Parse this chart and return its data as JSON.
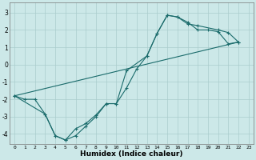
{
  "bg_color": "#cce8e8",
  "grid_color": "#aacccc",
  "line_color": "#1a6b6b",
  "xlabel": "Humidex (Indice chaleur)",
  "xlim": [
    -0.5,
    23.5
  ],
  "ylim": [
    -4.6,
    3.6
  ],
  "yticks": [
    -4,
    -3,
    -2,
    -1,
    0,
    1,
    2,
    3
  ],
  "xticks": [
    0,
    1,
    2,
    3,
    4,
    5,
    6,
    7,
    8,
    9,
    10,
    11,
    12,
    13,
    14,
    15,
    16,
    17,
    18,
    19,
    20,
    21,
    22,
    23
  ],
  "line1_x": [
    0,
    1,
    2,
    3,
    4,
    5,
    6,
    7,
    8,
    9,
    10,
    11,
    12,
    13,
    14,
    15,
    16,
    17,
    18,
    19,
    20,
    21,
    22
  ],
  "line1_y": [
    -1.8,
    -2.0,
    -2.0,
    -2.85,
    -4.1,
    -4.35,
    -4.1,
    -3.55,
    -3.0,
    -2.25,
    -2.25,
    -1.35,
    -0.25,
    0.5,
    1.8,
    2.85,
    2.75,
    2.45,
    2.0,
    2.0,
    1.9,
    1.2,
    1.3
  ],
  "line2_x": [
    0,
    3,
    4,
    5,
    6,
    7,
    8,
    9,
    10,
    11,
    13,
    14,
    15,
    16,
    17,
    18,
    20,
    21,
    22
  ],
  "line2_y": [
    -1.8,
    -2.85,
    -4.1,
    -4.35,
    -3.7,
    -3.4,
    -2.9,
    -2.25,
    -2.25,
    -0.35,
    0.5,
    1.8,
    2.85,
    2.75,
    2.35,
    2.25,
    2.0,
    1.85,
    1.3
  ],
  "line3_x": [
    0,
    22
  ],
  "line3_y": [
    -1.8,
    1.3
  ]
}
